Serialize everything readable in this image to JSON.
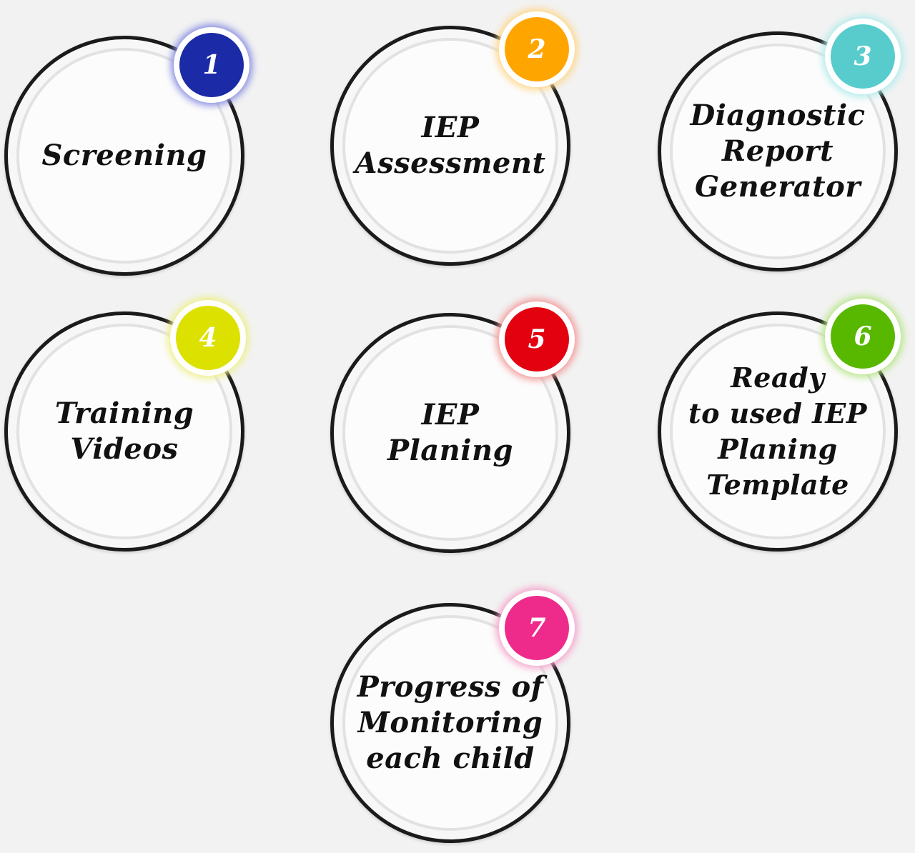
{
  "steps": [
    {
      "number": "1",
      "label": "Screening",
      "color": "#1b2aa6",
      "glow": "#8a8fe0"
    },
    {
      "number": "2",
      "label": "IEP\nAssessment",
      "color": "#ffa500",
      "glow": "#ffd78a"
    },
    {
      "number": "3",
      "label": "Diagnostic\nReport\nGenerator",
      "color": "#58cccc",
      "glow": "#b4ecec"
    },
    {
      "number": "4",
      "label": "Training\nVideos",
      "color": "#dce100",
      "glow": "#eef08a"
    },
    {
      "number": "5",
      "label": "IEP\nPlaning",
      "color": "#e3000f",
      "glow": "#f39a9a"
    },
    {
      "number": "6",
      "label": "Ready\nto used IEP\nPlaning\nTemplate",
      "color": "#58b800",
      "glow": "#b8e68a"
    },
    {
      "number": "7",
      "label": "Progress of\nMonitoring\neach child",
      "color": "#ee2a8a",
      "glow": "#f5a6cc"
    }
  ]
}
